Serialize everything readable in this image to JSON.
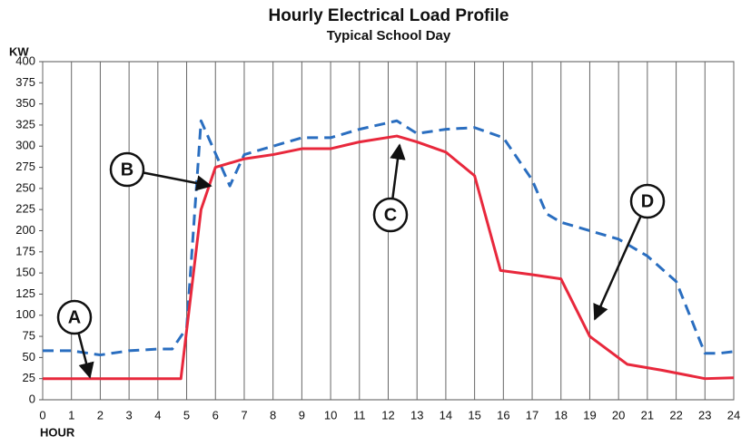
{
  "chart_data": {
    "type": "line",
    "title": "Hourly Electrical Load Profile",
    "subtitle": "Typical School Day",
    "y_label": "KW",
    "x_label": "HOUR",
    "xlim": [
      0,
      24
    ],
    "xticks": [
      0,
      1,
      2,
      3,
      4,
      5,
      6,
      7,
      8,
      9,
      10,
      11,
      12,
      13,
      14,
      15,
      16,
      17,
      18,
      19,
      20,
      21,
      22,
      23,
      24
    ],
    "ylim": [
      0,
      400
    ],
    "yticks": [
      0,
      25,
      50,
      75,
      100,
      125,
      150,
      175,
      200,
      225,
      250,
      275,
      300,
      325,
      350,
      375,
      400
    ],
    "grid": "x",
    "series": [
      {
        "color": "#e8283c",
        "dash": false,
        "x": [
          0,
          1,
          2,
          3,
          4,
          4.8,
          5.5,
          6,
          7,
          8,
          9,
          10,
          11,
          12.3,
          13,
          14,
          15,
          15.9,
          17,
          18,
          19,
          20.3,
          21.5,
          23,
          24
        ],
        "values": [
          25,
          25,
          25,
          25,
          25,
          25,
          225,
          275,
          285,
          290,
          297,
          297,
          305,
          312,
          305,
          293,
          265,
          153,
          148,
          143,
          75,
          42,
          35,
          25,
          26
        ]
      },
      {
        "color": "#2a6ec0",
        "dash": true,
        "x": [
          0,
          1,
          2,
          3,
          4,
          4.5,
          5,
          5.5,
          6.5,
          7,
          8,
          9,
          10,
          11,
          12.3,
          13,
          14,
          15,
          16,
          17,
          17.5,
          18,
          19,
          20,
          21,
          22,
          23,
          23.5,
          24
        ],
        "values": [
          58,
          58,
          53,
          58,
          60,
          60,
          85,
          330,
          253,
          290,
          300,
          310,
          310,
          320,
          330,
          315,
          320,
          322,
          310,
          260,
          220,
          210,
          200,
          190,
          170,
          140,
          55,
          55,
          57
        ]
      }
    ],
    "annotations": [
      "A",
      "B",
      "C",
      "D"
    ]
  }
}
